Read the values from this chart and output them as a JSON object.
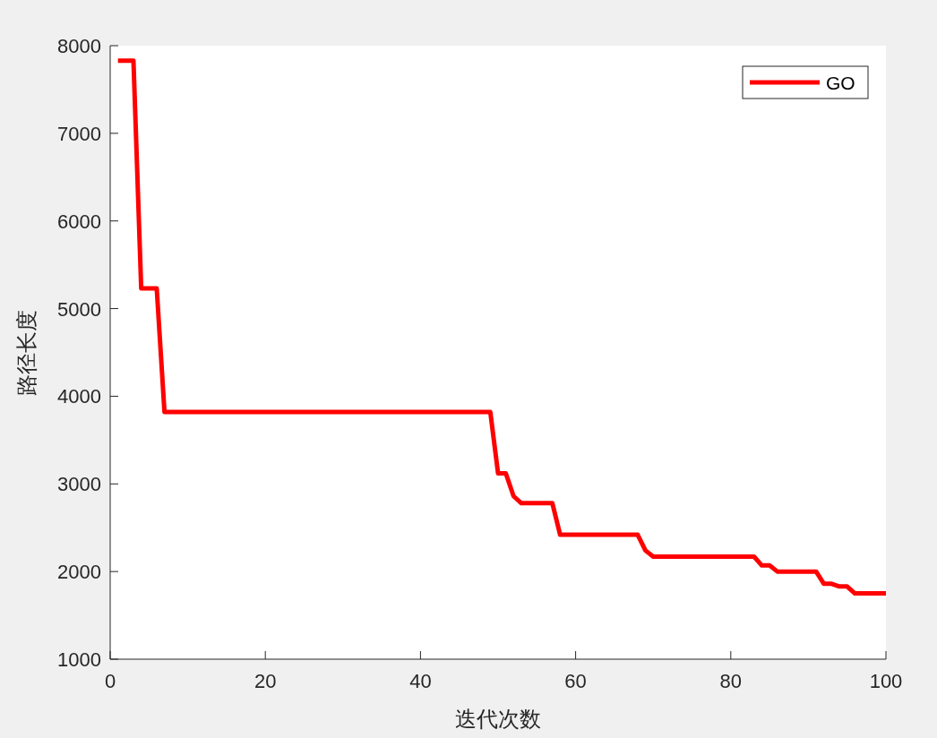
{
  "chart_data": {
    "type": "line",
    "xlabel": "迭代次数",
    "ylabel": "路径长度",
    "x": [
      1,
      3,
      4,
      6,
      7,
      49,
      50,
      51,
      52,
      53,
      57,
      58,
      68,
      69,
      70,
      83,
      84,
      85,
      86,
      91,
      92,
      93,
      94,
      95,
      96,
      100
    ],
    "series": [
      {
        "name": "GO",
        "color": "#ff0000",
        "values": [
          7830,
          7830,
          5230,
          5230,
          3820,
          3820,
          3120,
          3120,
          2860,
          2780,
          2780,
          2420,
          2420,
          2240,
          2170,
          2170,
          2070,
          2070,
          2000,
          2000,
          1860,
          1860,
          1830,
          1830,
          1750,
          1750
        ]
      }
    ],
    "xlim": [
      0,
      100
    ],
    "ylim": [
      1000,
      8000
    ],
    "xticks": [
      0,
      20,
      40,
      60,
      80,
      100
    ],
    "yticks": [
      1000,
      2000,
      3000,
      4000,
      5000,
      6000,
      7000,
      8000
    ],
    "legend": "top right"
  }
}
